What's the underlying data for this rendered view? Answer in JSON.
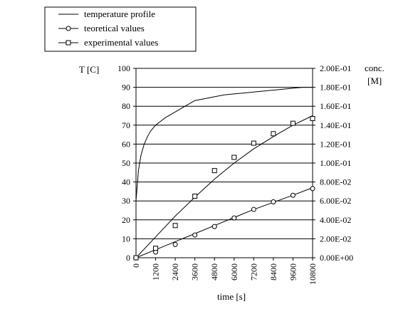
{
  "chart_data": {
    "type": "line",
    "x_label": "time [s]",
    "y_left_label": "T [C]",
    "y_right_label_line1": "conc.",
    "y_right_label_line2": "[M]",
    "x_range": [
      0,
      10800
    ],
    "x_ticks": [
      0,
      1200,
      2400,
      3600,
      4800,
      6000,
      7200,
      8400,
      9600,
      10800
    ],
    "y_left_range": [
      0,
      100
    ],
    "y_left_ticks": [
      0,
      10,
      20,
      30,
      40,
      50,
      60,
      70,
      80,
      90,
      100
    ],
    "y_right_range": [
      0,
      0.2
    ],
    "y_right_ticks": [
      "0.00E+00",
      "2.00E-02",
      "4.00E-02",
      "6.00E-02",
      "8.00E-02",
      "1.00E-01",
      "1.20E-01",
      "1.40E-01",
      "1.60E-01",
      "1.80E-01",
      "2.00E-01"
    ],
    "grid": "horizontal",
    "legend_position": "top-left",
    "legend": [
      {
        "label": "temperature profile",
        "marker": "none"
      },
      {
        "label": "teoretical values",
        "marker": "circle"
      },
      {
        "label": "experimental values",
        "marker": "square"
      }
    ],
    "series": [
      {
        "name": "temperature profile",
        "axis": "left",
        "marker": "none",
        "x": [
          0,
          150,
          300,
          500,
          700,
          900,
          1200,
          1500,
          1800,
          2100,
          2400,
          2700,
          3000,
          3300,
          3600,
          4200,
          4800,
          5400,
          6000,
          6600,
          7200,
          7800,
          8400,
          9000,
          9600,
          10200,
          10800
        ],
        "y": [
          30,
          46,
          54,
          60,
          64,
          67,
          70,
          72,
          74,
          75.5,
          77,
          78.5,
          80,
          81.5,
          83,
          84,
          85,
          86,
          86.5,
          87,
          87.5,
          88,
          88.5,
          89,
          89.5,
          90,
          90
        ]
      },
      {
        "name": "teoretical values",
        "axis": "right",
        "marker": "circle",
        "points_x": [
          0,
          1200,
          2400,
          3600,
          4800,
          6000,
          7200,
          8400,
          9600,
          10800
        ],
        "points_y": [
          0,
          0.006,
          0.014,
          0.024,
          0.033,
          0.042,
          0.051,
          0.059,
          0.066,
          0.073
        ],
        "curve_x": [
          0,
          1200,
          2400,
          3600,
          4800,
          6000,
          7200,
          8400,
          9600,
          10800
        ],
        "curve_y": [
          0,
          0.0085,
          0.017,
          0.0255,
          0.034,
          0.0425,
          0.051,
          0.0585,
          0.066,
          0.074
        ]
      },
      {
        "name": "experimental values",
        "axis": "right",
        "marker": "square",
        "points_x": [
          0,
          1200,
          2400,
          3600,
          4800,
          6000,
          7200,
          8400,
          9600,
          10800
        ],
        "points_y": [
          0,
          0.01,
          0.034,
          0.065,
          0.092,
          0.106,
          0.121,
          0.131,
          0.142,
          0.147
        ],
        "curve_x": [
          0,
          1200,
          2400,
          3600,
          4800,
          6000,
          7200,
          8400,
          9600,
          10800
        ],
        "curve_y": [
          0,
          0.022,
          0.044,
          0.064,
          0.083,
          0.1,
          0.115,
          0.128,
          0.14,
          0.15
        ]
      }
    ]
  }
}
